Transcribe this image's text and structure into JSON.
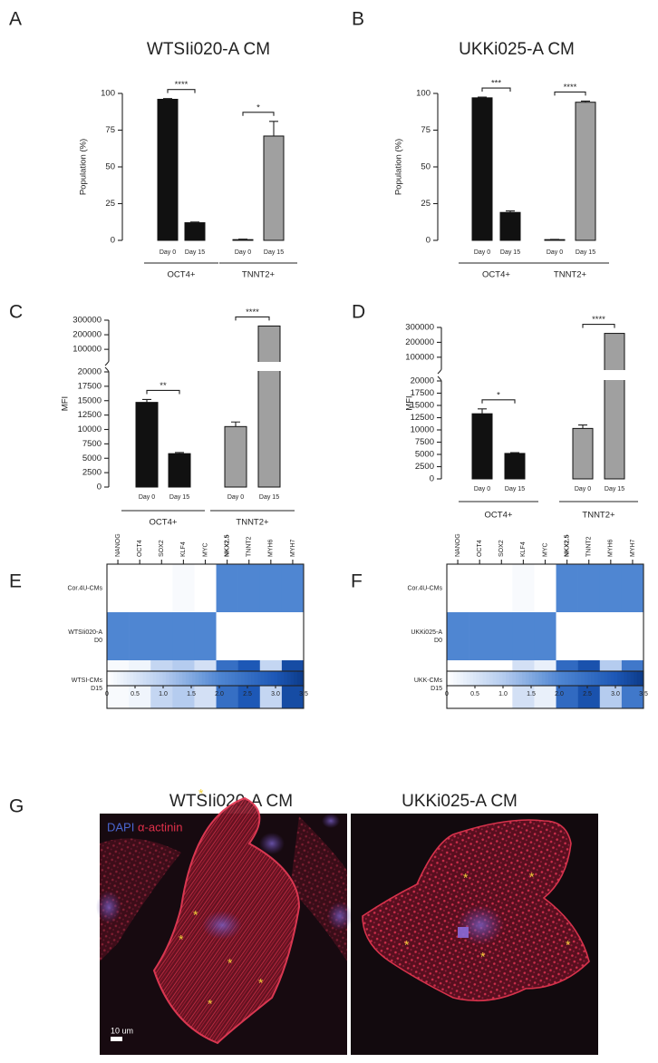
{
  "chart_data": [
    {
      "type": "bar",
      "label": "A",
      "title": "WTSIi020-A CM",
      "ylabel": "Population (%)",
      "categories": [
        "Day 0",
        "Day 15",
        "Day 0",
        "Day 15"
      ],
      "groups": [
        "OCT4+",
        "TNNT2+"
      ],
      "values": [
        96,
        12,
        0.5,
        71
      ],
      "errors": [
        0.5,
        0.5,
        0.3,
        10
      ],
      "colors": [
        "#111111",
        "#111111",
        "#a0a0a0",
        "#a0a0a0"
      ],
      "significance": [
        "****",
        "*"
      ],
      "ylim": [
        0,
        100
      ],
      "yticks": [
        0,
        25,
        50,
        75,
        100
      ]
    },
    {
      "type": "bar",
      "label": "B",
      "title": "UKKi025-A CM",
      "ylabel": "Population (%)",
      "categories": [
        "Day 0",
        "Day 15",
        "Day 0",
        "Day 15"
      ],
      "groups": [
        "OCT4+",
        "TNNT2+"
      ],
      "values": [
        97,
        19,
        0.5,
        94
      ],
      "errors": [
        0.5,
        1,
        0.2,
        0.8
      ],
      "colors": [
        "#111111",
        "#111111",
        "#a0a0a0",
        "#a0a0a0"
      ],
      "significance": [
        "***",
        "****"
      ],
      "ylim": [
        0,
        100
      ],
      "yticks": [
        0,
        25,
        50,
        75,
        100
      ]
    },
    {
      "type": "bar",
      "label": "C",
      "ylabel": "MFI",
      "categories": [
        "Day 0",
        "Day 15",
        "Day 0",
        "Day 15"
      ],
      "groups": [
        "OCT4+",
        "TNNT2+"
      ],
      "values": [
        14700,
        5800,
        10500,
        260000
      ],
      "errors": [
        500,
        200,
        800,
        null
      ],
      "colors": [
        "#111111",
        "#111111",
        "#a0a0a0",
        "#a0a0a0"
      ],
      "significance": [
        "**",
        "****"
      ],
      "ylim": [
        0,
        300000
      ],
      "y_break": 20000,
      "yticks": [
        0,
        2500,
        5000,
        7500,
        10000,
        12500,
        15000,
        17500,
        20000,
        100000,
        200000,
        300000
      ]
    },
    {
      "type": "bar",
      "label": "D",
      "ylabel": "MFI",
      "categories": [
        "Day 0",
        "Day 15",
        "Day 0",
        "Day 15"
      ],
      "groups": [
        "OCT4+",
        "TNNT2+"
      ],
      "values": [
        13300,
        5200,
        10300,
        260000
      ],
      "errors": [
        1000,
        150,
        700,
        null
      ],
      "colors": [
        "#111111",
        "#111111",
        "#a0a0a0",
        "#a0a0a0"
      ],
      "significance": [
        "*",
        "****"
      ],
      "ylim": [
        0,
        300000
      ],
      "y_break": 20000,
      "yticks": [
        0,
        2500,
        5000,
        7500,
        10000,
        12500,
        15000,
        17500,
        20000,
        100000,
        200000,
        300000
      ]
    },
    {
      "type": "heatmap",
      "label": "E",
      "columns": [
        "NANOG",
        "OCT4",
        "SOX2",
        "KLF4",
        "MYC",
        "NKX2.5",
        "TNNT2",
        "MYH6",
        "MYH7"
      ],
      "bold_column": "NKX2.5",
      "rows": [
        [
          "Cor.4U-CMs"
        ],
        [
          "WTSIi020-A",
          "D0"
        ],
        [
          "WTSI-CMs",
          "D15"
        ]
      ],
      "values": [
        [
          0,
          0,
          0,
          0.1,
          0,
          2,
          2,
          2,
          2
        ],
        [
          2,
          2,
          2,
          2,
          2,
          0,
          0,
          0,
          0
        ],
        [
          0.1,
          0.2,
          0.8,
          1,
          0.6,
          2.5,
          3,
          0.8,
          3.2
        ]
      ],
      "vlim": [
        0,
        3.5
      ],
      "colorscale": [
        [
          0,
          "#ffffff"
        ],
        [
          1,
          "#b5ccef"
        ],
        [
          2,
          "#4f86d2"
        ],
        [
          3,
          "#1d58b6"
        ],
        [
          3.5,
          "#0c3a88"
        ]
      ],
      "colorbar_ticks": [
        0,
        0.5,
        {
          "value": 1,
          "label": "1.0"
        },
        1.5,
        {
          "value": 2,
          "label": "2.0"
        },
        2.5,
        {
          "value": 3,
          "label": "3.0"
        },
        3.5
      ]
    },
    {
      "type": "heatmap",
      "label": "F",
      "columns": [
        "NANOG",
        "OCT4",
        "SOX2",
        "KLF4",
        "MYC",
        "NKX2.5",
        "TNNT2",
        "MYH6",
        "MYH7"
      ],
      "bold_column": "NKX2.5",
      "rows": [
        [
          "Cor.4U-CMs"
        ],
        [
          "UKKi025-A",
          "D0"
        ],
        [
          "UKK-CMs",
          "D15"
        ]
      ],
      "values": [
        [
          0,
          0,
          0,
          0.1,
          0,
          2,
          2,
          2,
          2
        ],
        [
          2,
          2,
          2,
          2,
          2,
          0,
          0,
          0,
          0
        ],
        [
          0,
          0,
          0,
          0.6,
          0.3,
          2.6,
          3.1,
          1,
          2.3
        ]
      ],
      "vlim": [
        0,
        3.5
      ],
      "colorscale": [
        [
          0,
          "#ffffff"
        ],
        [
          1,
          "#b5ccef"
        ],
        [
          2,
          "#4f86d2"
        ],
        [
          3,
          "#1d58b6"
        ],
        [
          3.5,
          "#0c3a88"
        ]
      ],
      "colorbar_ticks": [
        0,
        0.5,
        {
          "value": 1,
          "label": "1.0"
        },
        1.5,
        {
          "value": 2,
          "label": "2.0"
        },
        2.5,
        {
          "value": 3,
          "label": "3.0"
        },
        3.5
      ]
    }
  ],
  "figure_g": {
    "label": "G",
    "images": [
      {
        "title": "WTSIi020-A CM",
        "stains": [
          "DAPI",
          "α-actinin"
        ],
        "scale_bar": "10 um"
      },
      {
        "title": "UKKi025-A CM"
      }
    ]
  }
}
